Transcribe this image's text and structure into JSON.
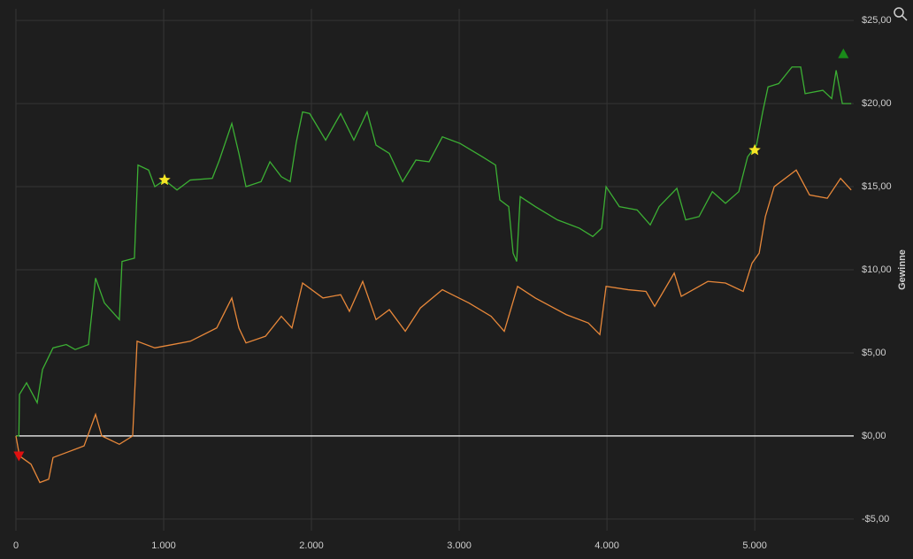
{
  "chart_data": {
    "type": "line",
    "y_label": "Gewinne",
    "xlim": [
      0,
      5670
    ],
    "ylim": [
      -5.7,
      25.7
    ],
    "xticks": [
      0,
      {
        "value": 1000,
        "label": "1.000"
      },
      {
        "value": 2000,
        "label": "2.000"
      },
      {
        "value": 3000,
        "label": "3.000"
      },
      {
        "value": 4000,
        "label": "4.000"
      },
      {
        "value": 5000,
        "label": "5.000"
      }
    ],
    "yticks": [
      {
        "value": -5,
        "label": "-$5,00"
      },
      {
        "value": 0,
        "label": "$0,00"
      },
      {
        "value": 5,
        "label": "$5,00"
      },
      {
        "value": 10,
        "label": "$10,00"
      },
      {
        "value": 15,
        "label": "$15,00"
      },
      {
        "value": 20,
        "label": "$20,00"
      },
      {
        "value": 25,
        "label": "$25,00"
      }
    ],
    "grid": true,
    "grid_color": "#353535",
    "zero_line_color": "#ffffff",
    "background": "#1e1e1e",
    "series": [
      {
        "color": "#3cb034",
        "x": [
          0,
          20,
          24,
          72,
          144,
          180,
          251,
          341,
          401,
          491,
          539,
          599,
          700,
          718,
          802,
          826,
          898,
          940,
          1006,
          1090,
          1180,
          1329,
          1377,
          1461,
          1509,
          1557,
          1659,
          1719,
          1796,
          1856,
          1898,
          1940,
          1988,
          2096,
          2198,
          2287,
          2377,
          2437,
          2527,
          2617,
          2707,
          2796,
          2886,
          3006,
          3156,
          3246,
          3275,
          3335,
          3365,
          3389,
          3413,
          3515,
          3665,
          3814,
          3904,
          3964,
          3994,
          4084,
          4204,
          4293,
          4353,
          4473,
          4533,
          4623,
          4713,
          4802,
          4892,
          4952,
          5012,
          5054,
          5090,
          5162,
          5252,
          5311,
          5341,
          5461,
          5521,
          5551,
          5593,
          5653
        ],
        "values": [
          0,
          0,
          2.5,
          3.2,
          2.0,
          4,
          5.3,
          5.5,
          5.2,
          5.5,
          9.5,
          8,
          7,
          10.5,
          10.7,
          16.3,
          16,
          15,
          15.4,
          14.8,
          15.4,
          15.5,
          16.6,
          18.8,
          17,
          15,
          15.3,
          16.5,
          15.6,
          15.3,
          17.7,
          19.5,
          19.4,
          17.8,
          19.4,
          17.8,
          19.5,
          17.5,
          17,
          15.3,
          16.6,
          16.5,
          18,
          17.6,
          16.8,
          16.3,
          14.2,
          13.8,
          11,
          10.5,
          14.4,
          13.8,
          13,
          12.5,
          12,
          12.5,
          15,
          13.8,
          13.6,
          12.7,
          13.8,
          14.9,
          13,
          13.2,
          14.7,
          14,
          14.7,
          16.8,
          17.5,
          19.5,
          21,
          21.2,
          22.2,
          22.2,
          20.6,
          20.8,
          20.3,
          22,
          20,
          20
        ]
      },
      {
        "color": "#e8883a",
        "x": [
          0,
          24,
          102,
          162,
          222,
          251,
          341,
          461,
          539,
          581,
          700,
          790,
          820,
          940,
          1060,
          1180,
          1359,
          1461,
          1509,
          1557,
          1689,
          1796,
          1868,
          1940,
          2078,
          2198,
          2257,
          2347,
          2437,
          2527,
          2635,
          2737,
          2886,
          3066,
          3216,
          3305,
          3395,
          3515,
          3725,
          3874,
          3952,
          3994,
          4144,
          4264,
          4323,
          4455,
          4503,
          4683,
          4802,
          4922,
          4982,
          5030,
          5072,
          5132,
          5281,
          5371,
          5491,
          5581,
          5653
        ],
        "values": [
          0,
          -1.2,
          -1.7,
          -2.8,
          -2.6,
          -1.3,
          -1.0,
          -0.6,
          1.3,
          0,
          -0.5,
          0,
          5.7,
          5.3,
          5.5,
          5.7,
          6.5,
          8.3,
          6.5,
          5.6,
          6,
          7.2,
          6.5,
          9.2,
          8.3,
          8.5,
          7.5,
          9.3,
          7,
          7.6,
          6.3,
          7.7,
          8.8,
          8,
          7.2,
          6.3,
          9,
          8.3,
          7.3,
          6.8,
          6.1,
          9,
          8.8,
          8.7,
          7.8,
          9.8,
          8.4,
          9.3,
          9.2,
          8.7,
          10.4,
          11,
          13.2,
          15,
          16,
          14.5,
          14.3,
          15.5,
          14.8
        ]
      }
    ],
    "markers": [
      {
        "x": 20,
        "y": -1.2,
        "shape": "triangle-down",
        "color": "#e01010"
      },
      {
        "x": 1006,
        "y": 15.4,
        "shape": "star",
        "color": "#f5e625"
      },
      {
        "x": 5000,
        "y": 17.2,
        "shape": "star",
        "color": "#f5e625"
      },
      {
        "x": 5600,
        "y": 23,
        "shape": "triangle-up",
        "color": "#1a8a1a"
      }
    ]
  }
}
